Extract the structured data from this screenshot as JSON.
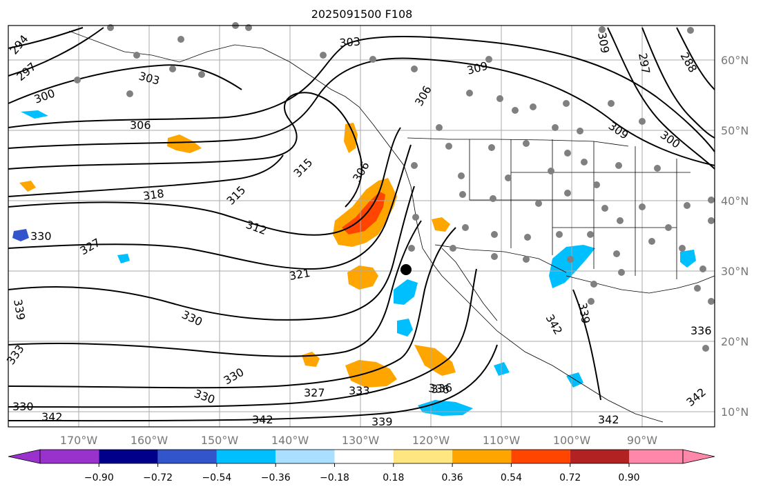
{
  "title": "2025091500 F108",
  "axes": {
    "lon_labels": [
      "170°W",
      "160°W",
      "150°W",
      "140°W",
      "130°W",
      "120°W",
      "110°W",
      "100°W",
      "90°W"
    ],
    "lat_labels": [
      "60°N",
      "50°N",
      "40°N",
      "30°N",
      "20°N",
      "10°N"
    ]
  },
  "colorbar": {
    "tick_labels": [
      "−0.90",
      "−0.72",
      "−0.54",
      "−0.36",
      "−0.18",
      "0.18",
      "0.36",
      "0.54",
      "0.72",
      "0.90"
    ],
    "colors": [
      "#9932cc",
      "#00008b",
      "#3355cc",
      "#00bfff",
      "#aadfff",
      "#ffffff",
      "#ffe680",
      "#ffa500",
      "#ff4500",
      "#b22222",
      "#ff88aa"
    ]
  },
  "contour_labels": [
    "294",
    "297",
    "300",
    "303",
    "306",
    "309",
    "312",
    "315",
    "318",
    "321",
    "327",
    "330",
    "333",
    "336",
    "339",
    "342",
    "303",
    "309",
    "306",
    "297",
    "288",
    "309",
    "300",
    "315",
    "306",
    "330",
    "330",
    "333",
    "336",
    "339",
    "342",
    "342",
    "327",
    "330",
    "330",
    "342",
    "339",
    "336",
    "342"
  ],
  "colors": {
    "frame": "#000000",
    "gridline": "#aaaaaa",
    "station_dot": "#808080",
    "marker": "#000000",
    "contour": "#000000"
  }
}
